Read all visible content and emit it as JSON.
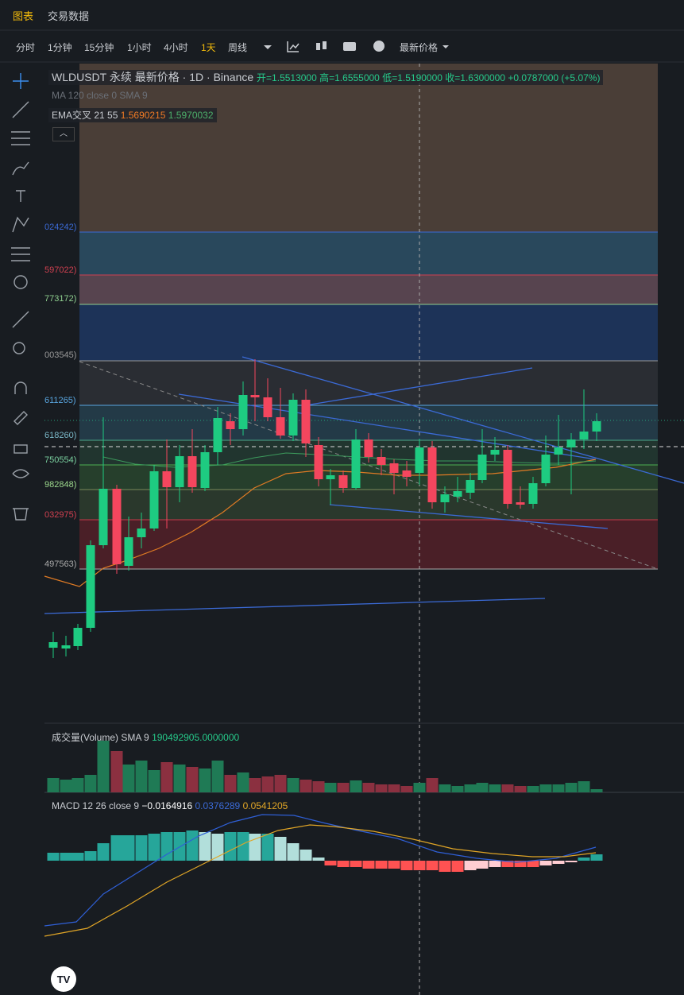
{
  "header": {
    "tabs": [
      "图表",
      "交易数据"
    ]
  },
  "toolbar": {
    "intervals": [
      "分时",
      "1分钟",
      "15分钟",
      "1小时",
      "4小时",
      "1天",
      "周线"
    ],
    "price_type": "最新价格"
  },
  "legend": {
    "symbol": "WLDUSDT 永续 最新价格",
    "interval": "1D",
    "exchange": "Binance",
    "open": "开=1.5513000",
    "high": "高=1.6555000",
    "low": "低=1.5190000",
    "close": "收=1.6300000",
    "change": "+0.0787000 (+5.07%)",
    "ma": "MA 120 close 0 SMA 9",
    "ema_title": "EMA交叉 21 55",
    "ema_values": [
      "1.5690215",
      "1.5970032"
    ]
  },
  "fib_labels": [
    "024242)",
    "597022)",
    "773172)",
    "003545)",
    "611265)",
    "618260)",
    "750554)",
    "982848)",
    "032975)",
    "497563)"
  ],
  "volume": {
    "title": "成交量(Volume)",
    "sma": "SMA 9",
    "value": "190492905.0000000"
  },
  "macd": {
    "title": "MACD 12 26 close 9",
    "values": [
      "−0.0164916",
      "0.0376289",
      "0.0541205"
    ]
  }
}
